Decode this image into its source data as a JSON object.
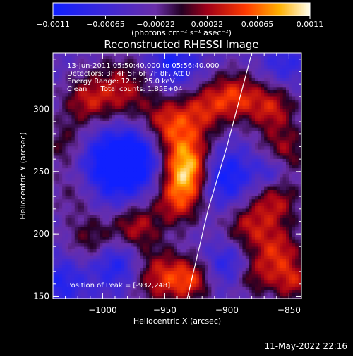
{
  "chart_data": {
    "type": "heatmap",
    "title": "Reconstructed RHESSI Image",
    "xlabel": "Heliocentric X (arcsec)",
    "ylabel": "Heliocentric Y (arcsec)",
    "xlim": [
      -1040,
      -840
    ],
    "ylim": [
      148,
      345
    ],
    "x_ticks": [
      -1000,
      -950,
      -900,
      -850
    ],
    "x_tick_labels": [
      "−1000",
      "−950",
      "−900",
      "−850"
    ],
    "y_ticks": [
      150,
      200,
      250,
      300
    ],
    "y_tick_labels": [
      "150",
      "200",
      "250",
      "300"
    ],
    "colorbar": {
      "range": [
        -0.0011,
        0.0011
      ],
      "ticks": [
        -0.0011,
        -0.00065,
        -0.00022,
        0.00022,
        0.00065,
        0.0011
      ],
      "tick_labels": [
        "−0.0011",
        "−0.00065",
        "−0.00022",
        "0.00022",
        "0.00065",
        "0.0011"
      ],
      "label": "(photons cm⁻² s⁻¹ asec⁻²)"
    },
    "annotations": [
      "13-Jun-2011 05:50:40.000 to 05:56:40.000",
      "Detectors: 3F 4F 5F 6F 7F 8F, Att 0",
      "Energy Range: 12.0 - 25.0 keV",
      "Clean      Total counts: 1.85E+04"
    ],
    "peak_label": "Position of Peak = [-932,248]",
    "peak": {
      "x": -932,
      "y": 248
    },
    "limb": [
      [
        -932,
        148
      ],
      [
        -915,
        220
      ],
      [
        -900,
        270
      ],
      [
        -880,
        345
      ]
    ],
    "blobs": [
      {
        "x": -932,
        "y": 248,
        "v": 0.0011,
        "s": 14
      },
      {
        "x": -936,
        "y": 270,
        "v": 0.0007,
        "s": 16
      },
      {
        "x": -940,
        "y": 225,
        "v": 0.00075,
        "s": 14
      },
      {
        "x": -950,
        "y": 290,
        "v": 0.0006,
        "s": 14
      },
      {
        "x": -985,
        "y": 315,
        "v": 0.00065,
        "s": 18
      },
      {
        "x": -1015,
        "y": 305,
        "v": 0.0006,
        "s": 14
      },
      {
        "x": -1030,
        "y": 270,
        "v": 0.00055,
        "s": 14
      },
      {
        "x": -1020,
        "y": 235,
        "v": 0.0006,
        "s": 16
      },
      {
        "x": -1010,
        "y": 195,
        "v": 0.0005,
        "s": 14
      },
      {
        "x": -975,
        "y": 205,
        "v": 0.0007,
        "s": 14
      },
      {
        "x": -955,
        "y": 165,
        "v": 0.00075,
        "s": 16
      },
      {
        "x": -930,
        "y": 162,
        "v": 0.0007,
        "s": 12
      },
      {
        "x": -920,
        "y": 300,
        "v": 0.0006,
        "s": 14
      },
      {
        "x": -895,
        "y": 310,
        "v": 0.00075,
        "s": 14
      },
      {
        "x": -865,
        "y": 300,
        "v": 0.0007,
        "s": 14
      },
      {
        "x": -855,
        "y": 265,
        "v": 0.0006,
        "s": 14
      },
      {
        "x": -862,
        "y": 225,
        "v": 0.00065,
        "s": 14
      },
      {
        "x": -885,
        "y": 205,
        "v": 0.0006,
        "s": 14
      },
      {
        "x": -860,
        "y": 185,
        "v": 0.0007,
        "s": 14
      },
      {
        "x": -848,
        "y": 160,
        "v": 0.00065,
        "s": 12
      },
      {
        "x": -880,
        "y": 165,
        "v": 0.0005,
        "s": 12
      },
      {
        "x": -1000,
        "y": 250,
        "v": -0.0009,
        "s": 22
      },
      {
        "x": -975,
        "y": 260,
        "v": -0.0007,
        "s": 16
      },
      {
        "x": -905,
        "y": 245,
        "v": -0.0008,
        "s": 16
      },
      {
        "x": -865,
        "y": 250,
        "v": -0.0005,
        "s": 10
      },
      {
        "x": -990,
        "y": 175,
        "v": -0.0006,
        "s": 14
      },
      {
        "x": -900,
        "y": 175,
        "v": -0.0005,
        "s": 12
      },
      {
        "x": -945,
        "y": 335,
        "v": -0.0006,
        "s": 14
      },
      {
        "x": -1035,
        "y": 160,
        "v": -0.0005,
        "s": 14
      },
      {
        "x": -855,
        "y": 335,
        "v": -0.0004,
        "s": 12
      }
    ]
  },
  "footer": {
    "timestamp": "11-May-2022 22:16"
  },
  "colors": {
    "background": "#000000",
    "foreground": "#ffffff"
  }
}
